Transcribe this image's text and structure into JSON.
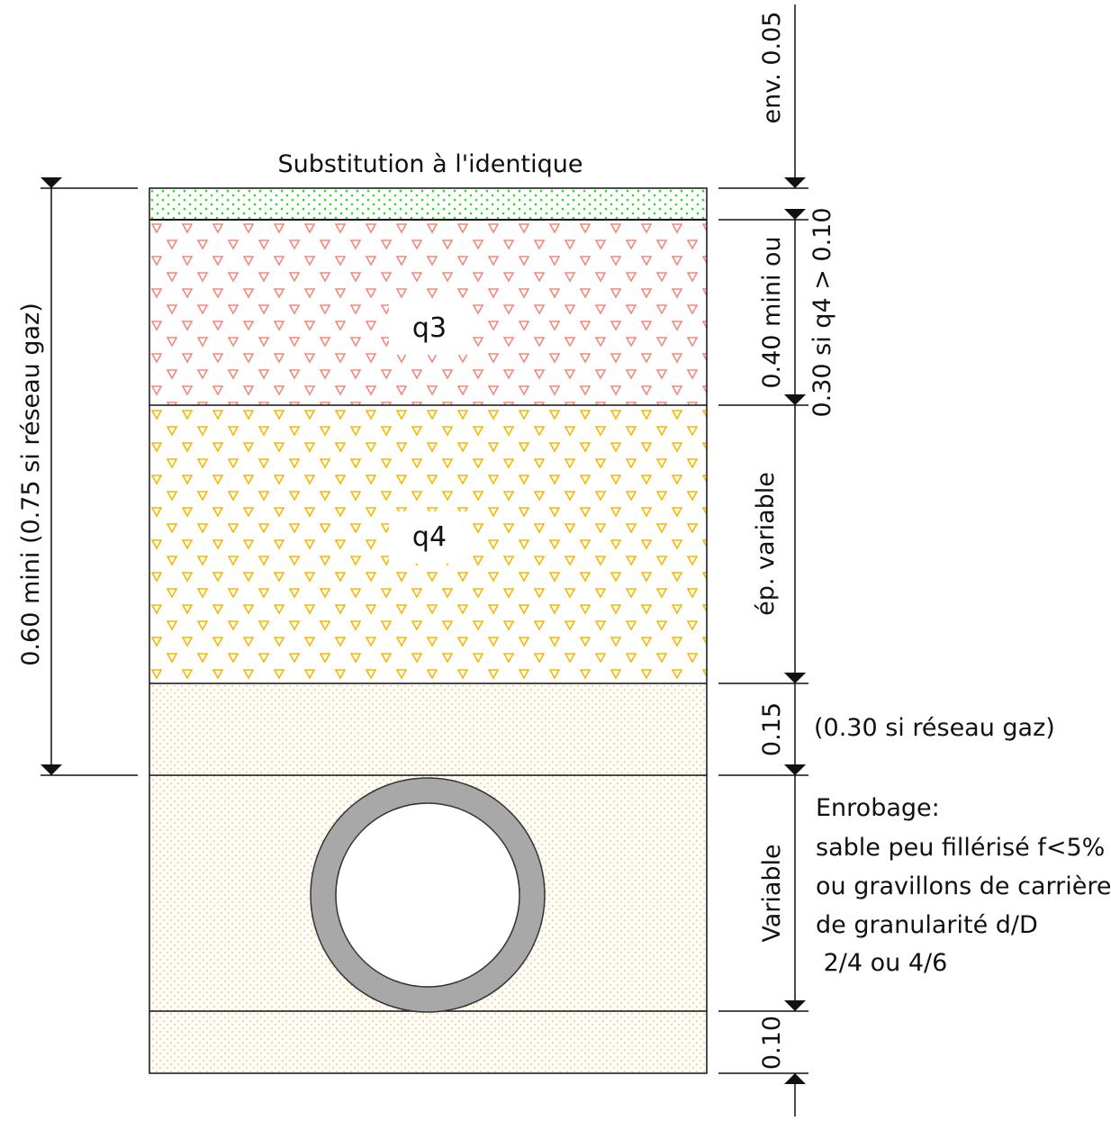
{
  "title": "Substitution à l'identique",
  "layers": {
    "q3": "q3",
    "q4": "q4"
  },
  "dimensions": {
    "top": "env. 0.05",
    "q3_a": "0.40 mini ou",
    "q3_b": "0.30 si q4 > 0.10",
    "q4": "ép. variable",
    "bed": "0.15",
    "bed_note": "(0.30 si réseau gaz)",
    "embed": "Variable",
    "bottom": "0.10",
    "total": "0.60 mini (0.75 si réseau gaz)"
  },
  "enrobage": {
    "lines": [
      "Enrobage:",
      "sable peu fillérisé f<5%",
      "ou gravillons de carrière",
      "de granularité d/D",
      " 2/4 ou 4/6"
    ]
  },
  "colors": {
    "surface": "#22dd22",
    "q3": "#f08a78",
    "q4": "#f5b800",
    "sand": "#f0a050",
    "pipe": "#a8a8a8"
  }
}
